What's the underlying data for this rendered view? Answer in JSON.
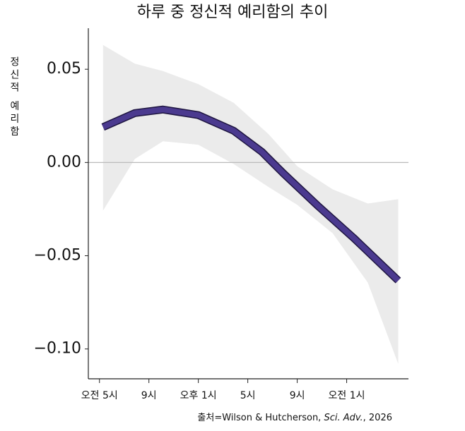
{
  "chart_data": {
    "type": "line",
    "title": "하루 중 정신적 예리함의 추이",
    "y_label": "정신적 예리함",
    "source": [
      "출처=Wilson & Hutcherson, ",
      "Sci. Adv.",
      ", 2026"
    ],
    "x": [
      0.29,
      2.86,
      5.14,
      8,
      10.86,
      13.14,
      14.86,
      17.71,
      20.57,
      24.17
    ],
    "series": [
      {
        "name": "정신적 예리함",
        "color": "#4b3a8f",
        "values": [
          0.019,
          0.0265,
          0.0284,
          0.0254,
          0.017,
          0.0057,
          -0.0057,
          -0.0235,
          -0.0405,
          -0.0633
        ]
      }
    ],
    "band": {
      "color": "#ebebeb",
      "x": [
        0.29,
        2.86,
        5.14,
        8,
        10.86,
        13.71,
        16,
        18.86,
        21.71,
        24.17
      ],
      "upper": [
        0.063,
        0.053,
        0.049,
        0.042,
        0.032,
        0.015,
        -0.002,
        -0.0144,
        -0.022,
        -0.0197
      ],
      "lower": [
        -0.0258,
        0.0019,
        0.0114,
        0.0095,
        -0.0008,
        -0.0133,
        -0.0227,
        -0.0379,
        -0.0644,
        -0.108
      ]
    },
    "reference_line": 0,
    "xlim": [
      -0.9,
      25
    ],
    "ylim": [
      -0.116,
      0.072
    ],
    "xticks": [
      {
        "value": 0,
        "label": "오전 5시"
      },
      {
        "value": 4,
        "label": "9시"
      },
      {
        "value": 8,
        "label": "오후 1시"
      },
      {
        "value": 12,
        "label": "5시"
      },
      {
        "value": 16,
        "label": "9시"
      },
      {
        "value": 20,
        "label": "오전 1시"
      }
    ],
    "yticks": [
      {
        "value": 0.05,
        "label": "0.05"
      },
      {
        "value": 0,
        "label": "0.00"
      },
      {
        "value": -0.05,
        "label": "−0.05"
      },
      {
        "value": -0.1,
        "label": "−0.10"
      }
    ]
  }
}
